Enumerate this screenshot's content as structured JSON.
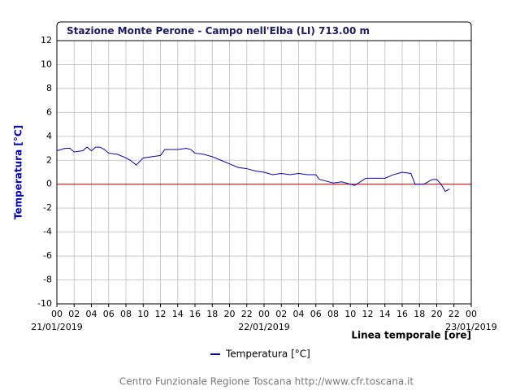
{
  "chart_data": {
    "type": "line",
    "title": "Stazione Monte Perone - Campo nell'Elba (LI) 713.00 m",
    "y_label": "Temperatura [°C]",
    "x_label": "Linea temporale [ore]",
    "footer": "Centro Funzionale Regione Toscana http://www.cfr.toscana.it",
    "x": [
      0,
      1,
      1.5,
      2,
      3,
      3.5,
      4,
      4.5,
      5,
      5.5,
      6,
      7,
      8,
      8.5,
      9.2,
      10,
      11,
      12,
      12.5,
      13,
      14,
      15,
      15.5,
      16,
      17,
      18,
      19,
      20,
      21,
      22,
      23,
      24,
      25,
      26,
      27,
      28,
      29,
      30,
      30.4,
      31,
      32,
      33,
      34,
      34.5,
      35.8,
      37,
      38,
      39,
      40,
      41,
      41.5,
      42.5,
      43,
      43.5,
      44,
      44.5,
      45,
      45.5
    ],
    "series": [
      {
        "name": "Temperatura [°C]",
        "color": "#0000cc",
        "values": [
          2.8,
          3.0,
          3.0,
          2.7,
          2.8,
          3.1,
          2.8,
          3.1,
          3.1,
          2.9,
          2.6,
          2.5,
          2.2,
          2.0,
          1.6,
          2.2,
          2.3,
          2.4,
          2.9,
          2.9,
          2.9,
          3.0,
          2.9,
          2.6,
          2.5,
          2.3,
          2.0,
          1.7,
          1.4,
          1.3,
          1.1,
          1.0,
          0.8,
          0.9,
          0.8,
          0.9,
          0.8,
          0.8,
          0.4,
          0.3,
          0.1,
          0.2,
          0.0,
          -0.1,
          0.5,
          0.5,
          0.5,
          0.8,
          1.0,
          0.9,
          0.0,
          0.0,
          0.2,
          0.4,
          0.4,
          0.0,
          -0.6,
          -0.4
        ]
      }
    ],
    "xlim": [
      0,
      48
    ],
    "xticks": [
      {
        "value": 0,
        "label": "00"
      },
      {
        "value": 2,
        "label": "02"
      },
      {
        "value": 4,
        "label": "04"
      },
      {
        "value": 6,
        "label": "06"
      },
      {
        "value": 8,
        "label": "08"
      },
      {
        "value": 10,
        "label": "10"
      },
      {
        "value": 12,
        "label": "12"
      },
      {
        "value": 14,
        "label": "14"
      },
      {
        "value": 16,
        "label": "16"
      },
      {
        "value": 18,
        "label": "18"
      },
      {
        "value": 20,
        "label": "20"
      },
      {
        "value": 22,
        "label": "22"
      },
      {
        "value": 24,
        "label": "00"
      },
      {
        "value": 26,
        "label": "02"
      },
      {
        "value": 28,
        "label": "04"
      },
      {
        "value": 30,
        "label": "06"
      },
      {
        "value": 32,
        "label": "08"
      },
      {
        "value": 34,
        "label": "10"
      },
      {
        "value": 36,
        "label": "12"
      },
      {
        "value": 38,
        "label": "14"
      },
      {
        "value": 40,
        "label": "16"
      },
      {
        "value": 42,
        "label": "18"
      },
      {
        "value": 44,
        "label": "20"
      },
      {
        "value": 46,
        "label": "22"
      },
      {
        "value": 48,
        "label": "00"
      }
    ],
    "date_labels": [
      {
        "value": 0,
        "label": "21/01/2019"
      },
      {
        "value": 24,
        "label": "22/01/2019"
      },
      {
        "value": 48,
        "label": "23/01/2019"
      }
    ],
    "ylim": [
      -10,
      12
    ],
    "yticks": [
      -10,
      -8,
      -6,
      -4,
      -2,
      0,
      2,
      4,
      6,
      8,
      10,
      12
    ],
    "grid": true,
    "reference_line": {
      "value": 0,
      "color": "#cc0000"
    }
  }
}
